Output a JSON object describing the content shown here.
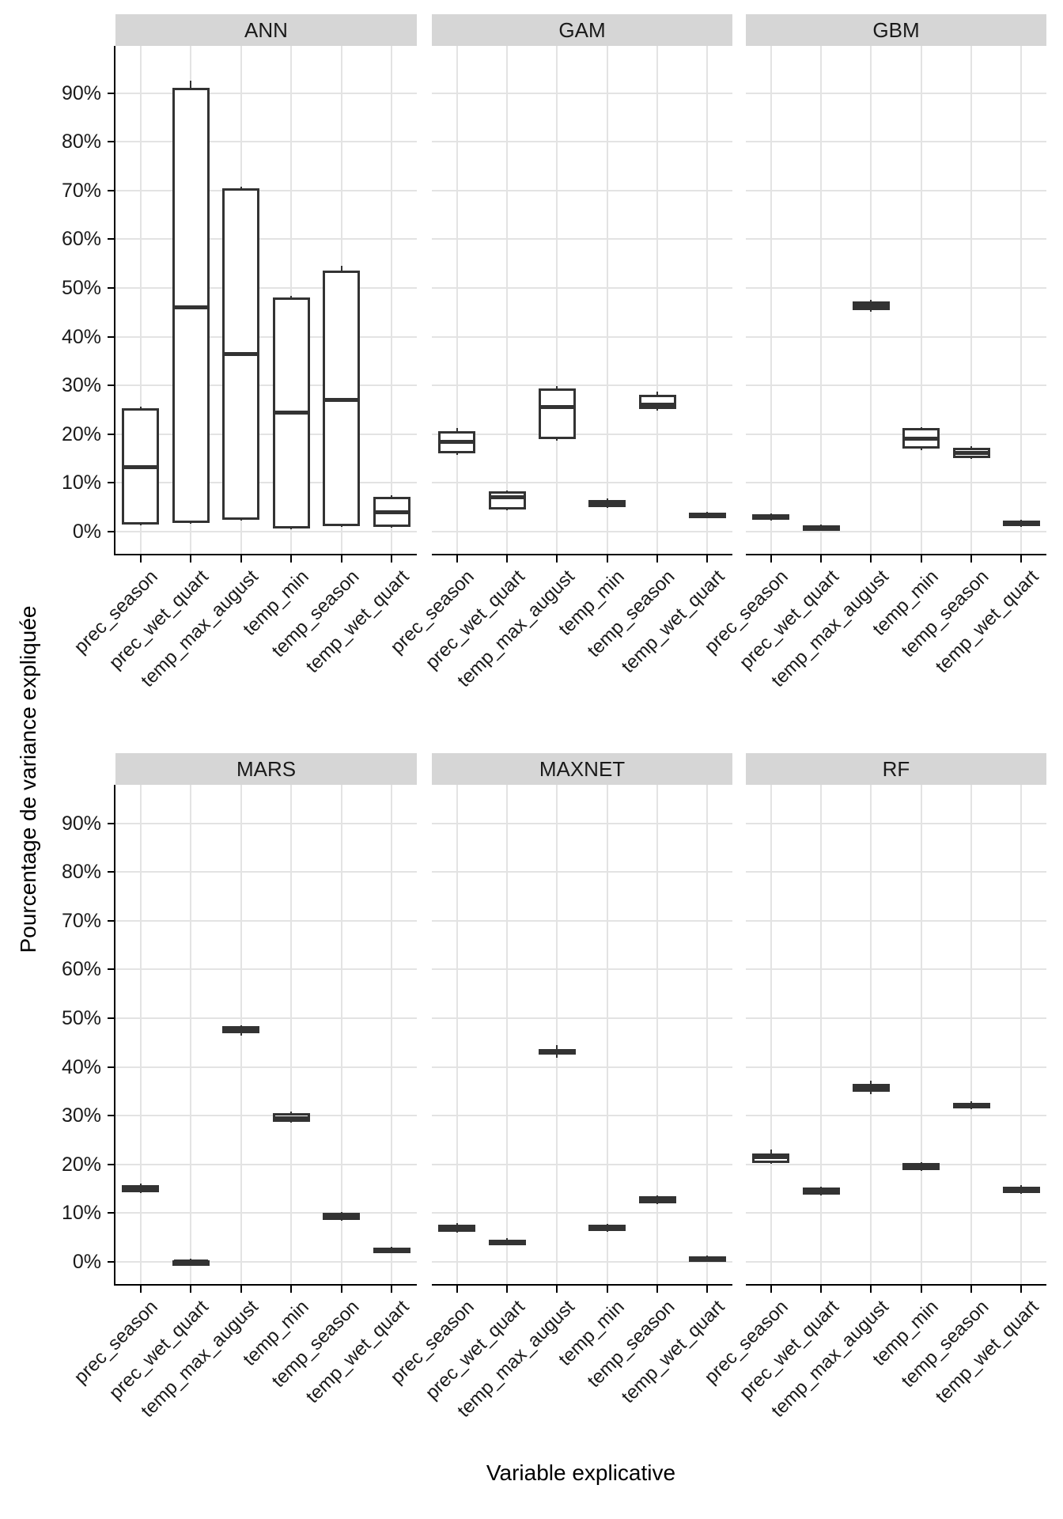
{
  "chart_data": {
    "type": "boxplot",
    "title": "",
    "xlabel": "Variable explicative",
    "ylabel": "Pourcentage de variance expliquée",
    "ylim": [
      -5,
      98
    ],
    "grid": true,
    "legend": "none",
    "ytick_format": "percent",
    "yticks": [
      {
        "label": "0%",
        "value": 0
      },
      {
        "label": "10%",
        "value": 10
      },
      {
        "label": "20%",
        "value": 20
      },
      {
        "label": "30%",
        "value": 30
      },
      {
        "label": "40%",
        "value": 40
      },
      {
        "label": "50%",
        "value": 50
      },
      {
        "label": "60%",
        "value": 60
      },
      {
        "label": "70%",
        "value": 70
      },
      {
        "label": "80%",
        "value": 80
      },
      {
        "label": "90%",
        "value": 90
      }
    ],
    "categories": [
      "prec_season",
      "prec_wet_quart",
      "temp_max_august",
      "temp_min",
      "temp_season",
      "temp_wet_quart"
    ],
    "facets": [
      {
        "name": "ANN",
        "stats": [
          {
            "lo": 1.3,
            "q1": 1.5,
            "med": 13.3,
            "q3": 25.4,
            "hi": 25.7
          },
          {
            "lo": 1.6,
            "q1": 1.8,
            "med": 46.0,
            "q3": 91.0,
            "hi": 92.5
          },
          {
            "lo": 2.2,
            "q1": 2.5,
            "med": 36.5,
            "q3": 70.5,
            "hi": 70.8
          },
          {
            "lo": 0.5,
            "q1": 0.7,
            "med": 24.5,
            "q3": 48.0,
            "hi": 48.3
          },
          {
            "lo": 0.9,
            "q1": 1.1,
            "med": 27.0,
            "q3": 53.5,
            "hi": 54.6
          },
          {
            "lo": 0.8,
            "q1": 1.0,
            "med": 4.0,
            "q3": 7.2,
            "hi": 7.5
          }
        ]
      },
      {
        "name": "GAM",
        "stats": [
          {
            "lo": 15.7,
            "q1": 16.0,
            "med": 18.5,
            "q3": 20.6,
            "hi": 21.3
          },
          {
            "lo": 4.3,
            "q1": 4.6,
            "med": 7.0,
            "q3": 8.2,
            "hi": 8.5
          },
          {
            "lo": 18.6,
            "q1": 19.0,
            "med": 25.5,
            "q3": 29.4,
            "hi": 29.8
          },
          {
            "lo": 4.8,
            "q1": 5.1,
            "med": 5.8,
            "q3": 6.5,
            "hi": 6.8
          },
          {
            "lo": 24.9,
            "q1": 25.2,
            "med": 26.0,
            "q3": 28.1,
            "hi": 28.8
          },
          {
            "lo": 2.8,
            "q1": 3.0,
            "med": 3.4,
            "q3": 3.9,
            "hi": 4.1
          }
        ]
      },
      {
        "name": "GBM",
        "stats": [
          {
            "lo": 2.2,
            "q1": 2.4,
            "med": 3.0,
            "q3": 3.5,
            "hi": 3.7
          },
          {
            "lo": 0.3,
            "q1": 0.5,
            "med": 0.9,
            "q3": 1.3,
            "hi": 1.5
          },
          {
            "lo": 45.1,
            "q1": 45.5,
            "med": 46.3,
            "q3": 47.2,
            "hi": 47.5
          },
          {
            "lo": 16.7,
            "q1": 17.0,
            "med": 19.0,
            "q3": 21.2,
            "hi": 21.5
          },
          {
            "lo": 14.9,
            "q1": 15.1,
            "med": 16.1,
            "q3": 17.2,
            "hi": 17.5
          },
          {
            "lo": 0.9,
            "q1": 1.1,
            "med": 1.7,
            "q3": 2.3,
            "hi": 2.5
          }
        ]
      },
      {
        "name": "MARS",
        "stats": [
          {
            "lo": 14.1,
            "q1": 14.3,
            "med": 15.0,
            "q3": 15.8,
            "hi": 16.1
          },
          {
            "lo": -0.3,
            "q1": -0.1,
            "med": 0.1,
            "q3": 0.4,
            "hi": 0.6
          },
          {
            "lo": 46.5,
            "q1": 46.9,
            "med": 47.5,
            "q3": 48.3,
            "hi": 48.6
          },
          {
            "lo": 28.5,
            "q1": 28.8,
            "med": 29.4,
            "q3": 30.6,
            "hi": 30.9
          },
          {
            "lo": 8.4,
            "q1": 8.6,
            "med": 9.2,
            "q3": 10.0,
            "hi": 10.2
          },
          {
            "lo": 1.8,
            "q1": 2.0,
            "med": 2.4,
            "q3": 2.9,
            "hi": 3.1
          }
        ]
      },
      {
        "name": "MAXNET",
        "stats": [
          {
            "lo": 6.0,
            "q1": 6.2,
            "med": 7.0,
            "q3": 7.7,
            "hi": 7.9
          },
          {
            "lo": 3.4,
            "q1": 3.6,
            "med": 4.1,
            "q3": 4.6,
            "hi": 4.8
          },
          {
            "lo": 41.9,
            "q1": 42.5,
            "med": 43.0,
            "q3": 43.6,
            "hi": 44.4
          },
          {
            "lo": 6.2,
            "q1": 6.4,
            "med": 7.0,
            "q3": 7.6,
            "hi": 7.8
          },
          {
            "lo": 11.8,
            "q1": 12.0,
            "med": 12.6,
            "q3": 13.4,
            "hi": 13.6
          },
          {
            "lo": 0.1,
            "q1": 0.3,
            "med": 0.8,
            "q3": 1.1,
            "hi": 1.3
          }
        ]
      },
      {
        "name": "RF",
        "stats": [
          {
            "lo": 20.1,
            "q1": 20.3,
            "med": 21.5,
            "q3": 22.3,
            "hi": 23.0
          },
          {
            "lo": 13.6,
            "q1": 13.8,
            "med": 14.5,
            "q3": 15.3,
            "hi": 15.5
          },
          {
            "lo": 34.4,
            "q1": 34.9,
            "med": 35.7,
            "q3": 36.6,
            "hi": 37.1
          },
          {
            "lo": 18.6,
            "q1": 18.8,
            "med": 19.5,
            "q3": 20.3,
            "hi": 20.5
          },
          {
            "lo": 31.4,
            "q1": 31.6,
            "med": 32.1,
            "q3": 32.7,
            "hi": 32.9
          },
          {
            "lo": 13.9,
            "q1": 14.1,
            "med": 14.8,
            "q3": 15.5,
            "hi": 15.7
          }
        ]
      }
    ]
  },
  "colors": {
    "box_stroke": "#333333",
    "median": "#333333",
    "whisker": "#333333",
    "grid": "#e3e3e3",
    "header_bg": "#d6d6d6",
    "header_text": "#1a1a1a",
    "axis": "#000000",
    "text": "#1a1a1a",
    "panel_bg": "#ffffff"
  }
}
